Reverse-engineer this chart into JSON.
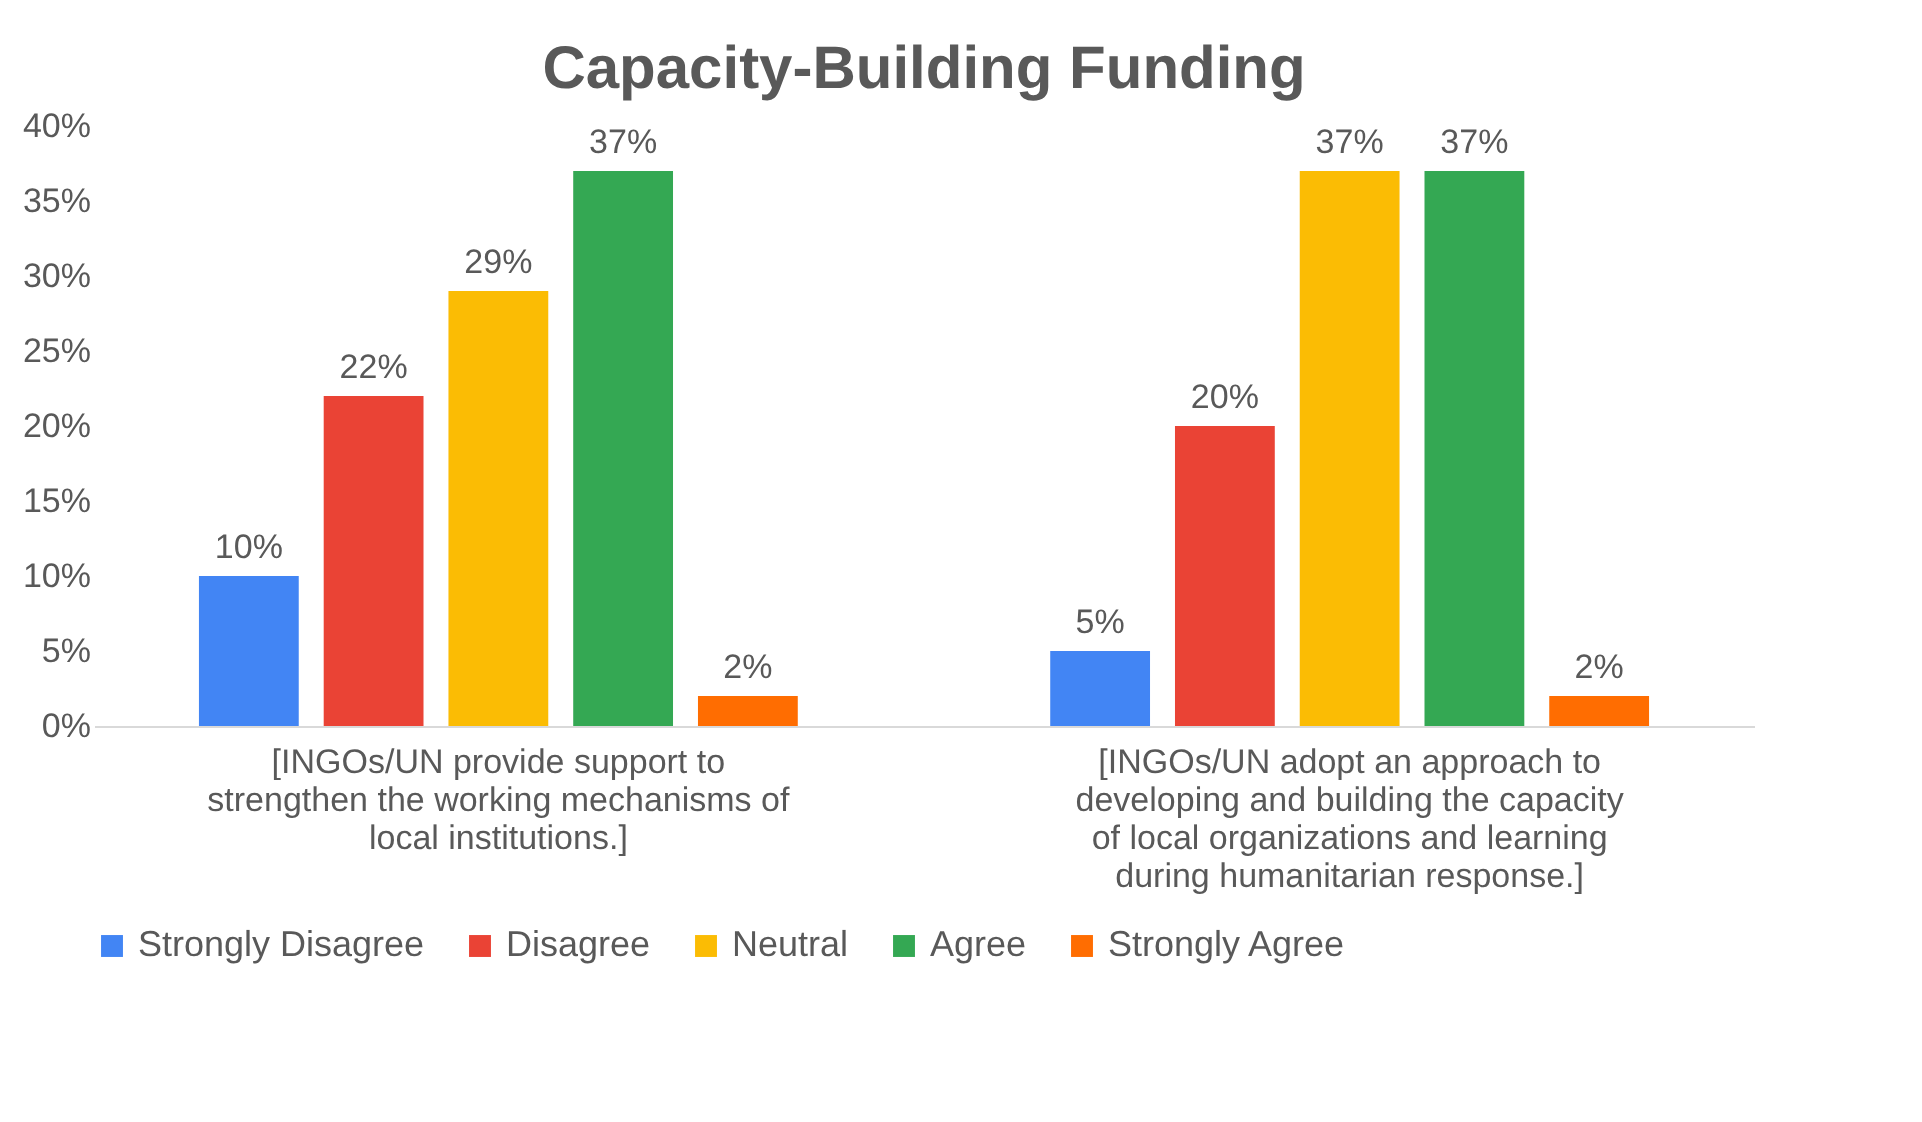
{
  "chart_data": {
    "type": "bar",
    "title": "Capacity-Building Funding",
    "categories": [
      "[INGOs/UN provide support to strengthen the working mechanisms of local institutions.]",
      "[INGOs/UN adopt an approach to developing and building the capacity of local organizations and learning during humanitarian response.]"
    ],
    "series": [
      {
        "name": "Strongly Disagree",
        "color": "#4285f4",
        "values": [
          10,
          5
        ],
        "value_labels": [
          "10%",
          "5%"
        ]
      },
      {
        "name": "Disagree",
        "color": "#ea4335",
        "values": [
          22,
          20
        ],
        "value_labels": [
          "22%",
          "20%"
        ]
      },
      {
        "name": "Neutral",
        "color": "#fbbc04",
        "values": [
          29,
          37
        ],
        "value_labels": [
          "29%",
          "37%"
        ]
      },
      {
        "name": "Agree",
        "color": "#34a853",
        "values": [
          37,
          37
        ],
        "value_labels": [
          "37%",
          "37%"
        ]
      },
      {
        "name": "Strongly Agree",
        "color": "#ff6d01",
        "values": [
          2,
          2
        ],
        "value_labels": [
          "2%",
          "2%"
        ]
      }
    ],
    "ylim": [
      0,
      40
    ],
    "yticks": [
      {
        "value": 0,
        "label": "0%"
      },
      {
        "value": 5,
        "label": "5%"
      },
      {
        "value": 10,
        "label": "10%"
      },
      {
        "value": 15,
        "label": "15%"
      },
      {
        "value": 20,
        "label": "20%"
      },
      {
        "value": 25,
        "label": "25%"
      },
      {
        "value": 30,
        "label": "30%"
      },
      {
        "value": 35,
        "label": "35%"
      },
      {
        "value": 40,
        "label": "40%"
      }
    ],
    "grid": false,
    "legend": "bottom"
  }
}
